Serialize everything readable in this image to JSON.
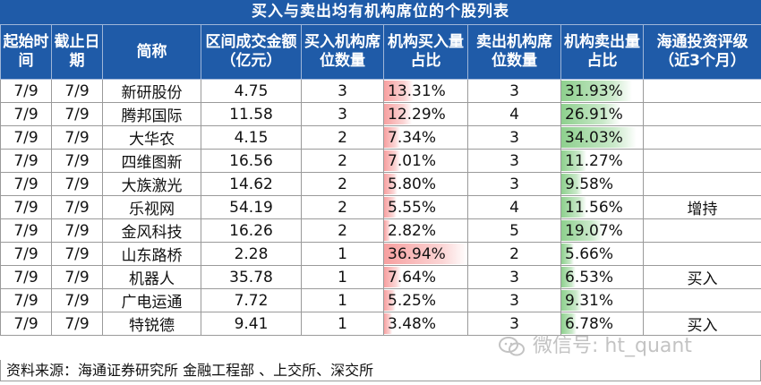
{
  "title": "买入与卖出均有机构席位的个股列表",
  "headers": [
    "起始时间",
    "截止日期",
    "简称",
    "区间成交金额（亿元）",
    "买入机构席位数量",
    "机构买入量占比",
    "卖出机构席位数量",
    "机构卖出量占比",
    "海通投资评级（近3个月）"
  ],
  "rows": [
    {
      "start": "7/9",
      "end": "7/9",
      "name": "新研股份",
      "amount": "4.75",
      "buy_seats": "3",
      "buy_ratio": "13.31%",
      "buy_pct": 13.31,
      "sell_seats": "3",
      "sell_ratio": "31.93%",
      "sell_pct": 31.93,
      "rating": ""
    },
    {
      "start": "7/9",
      "end": "7/9",
      "name": "腾邦国际",
      "amount": "11.58",
      "buy_seats": "3",
      "buy_ratio": "12.29%",
      "buy_pct": 12.29,
      "sell_seats": "4",
      "sell_ratio": "26.91%",
      "sell_pct": 26.91,
      "rating": ""
    },
    {
      "start": "7/9",
      "end": "7/9",
      "name": "大华农",
      "amount": "4.15",
      "buy_seats": "2",
      "buy_ratio": "7.34%",
      "buy_pct": 7.34,
      "sell_seats": "3",
      "sell_ratio": "34.03%",
      "sell_pct": 34.03,
      "rating": ""
    },
    {
      "start": "7/9",
      "end": "7/9",
      "name": "四维图新",
      "amount": "16.56",
      "buy_seats": "2",
      "buy_ratio": "7.01%",
      "buy_pct": 7.01,
      "sell_seats": "3",
      "sell_ratio": "11.27%",
      "sell_pct": 11.27,
      "rating": ""
    },
    {
      "start": "7/9",
      "end": "7/9",
      "name": "大族激光",
      "amount": "14.62",
      "buy_seats": "2",
      "buy_ratio": "5.80%",
      "buy_pct": 5.8,
      "sell_seats": "3",
      "sell_ratio": "9.58%",
      "sell_pct": 9.58,
      "rating": ""
    },
    {
      "start": "7/9",
      "end": "7/9",
      "name": "乐视网",
      "amount": "54.19",
      "buy_seats": "2",
      "buy_ratio": "5.55%",
      "buy_pct": 5.55,
      "sell_seats": "4",
      "sell_ratio": "11.56%",
      "sell_pct": 11.56,
      "rating": "增持"
    },
    {
      "start": "7/9",
      "end": "7/9",
      "name": "金风科技",
      "amount": "16.26",
      "buy_seats": "2",
      "buy_ratio": "2.82%",
      "buy_pct": 2.82,
      "sell_seats": "5",
      "sell_ratio": "19.07%",
      "sell_pct": 19.07,
      "rating": ""
    },
    {
      "start": "7/9",
      "end": "7/9",
      "name": "山东路桥",
      "amount": "2.28",
      "buy_seats": "1",
      "buy_ratio": "36.94%",
      "buy_pct": 36.94,
      "sell_seats": "2",
      "sell_ratio": "5.66%",
      "sell_pct": 5.66,
      "rating": ""
    },
    {
      "start": "7/9",
      "end": "7/9",
      "name": "机器人",
      "amount": "35.78",
      "buy_seats": "1",
      "buy_ratio": "7.64%",
      "buy_pct": 7.64,
      "sell_seats": "3",
      "sell_ratio": "6.53%",
      "sell_pct": 6.53,
      "rating": "买入"
    },
    {
      "start": "7/9",
      "end": "7/9",
      "name": "广电运通",
      "amount": "7.72",
      "buy_seats": "1",
      "buy_ratio": "5.25%",
      "buy_pct": 5.25,
      "sell_seats": "3",
      "sell_ratio": "9.31%",
      "sell_pct": 9.31,
      "rating": ""
    },
    {
      "start": "7/9",
      "end": "7/9",
      "name": "特锐德",
      "amount": "9.41",
      "buy_seats": "1",
      "buy_ratio": "3.48%",
      "buy_pct": 3.48,
      "sell_seats": "3",
      "sell_ratio": "6.78%",
      "sell_pct": 6.78,
      "rating": "买入"
    }
  ],
  "footer": "资料来源：海通证券研究所 金融工程部 、上交所、深交所",
  "watermark": "微信号: ht_quant",
  "colors": {
    "header_bg": "#1f5ba8",
    "buy_bar": "#f7a0a0",
    "sell_bar": "#8ed08e"
  }
}
